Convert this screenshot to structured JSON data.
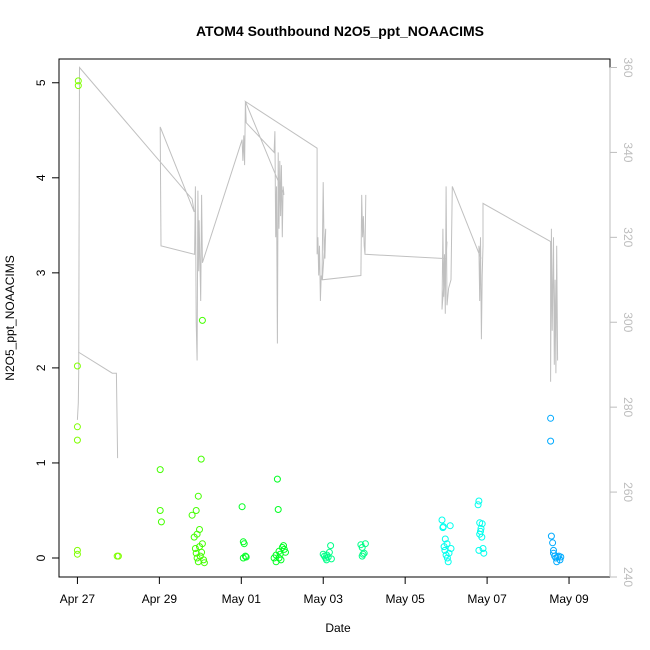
{
  "chart_data": {
    "type": "scatter",
    "title": "ATOM4 Southbound N2O5_ppt_NOAACIMS",
    "xlabel": "Date",
    "ylabel": "N2O5_ppt_NOAACIMS",
    "x_ticks": [
      "Apr 27",
      "Apr 29",
      "May 01",
      "May 03",
      "May 05",
      "May 07",
      "May 09"
    ],
    "x_tick_days": [
      0,
      2,
      4,
      6,
      8,
      10,
      12
    ],
    "xlim": [
      -0.45,
      13.0
    ],
    "ylim": [
      -0.2,
      5.25
    ],
    "y_ticks": [
      0,
      1,
      2,
      3,
      4,
      5
    ],
    "y2lim": [
      240,
      362
    ],
    "y2_ticks": [
      240,
      260,
      280,
      300,
      320,
      340,
      360
    ],
    "grid": false,
    "colors": {
      "axis": "#000000",
      "secondary_axis": "#bdbdbd",
      "line": "#c0c0c0"
    },
    "series": [
      {
        "color": "#7fff00",
        "points": [
          [
            0.02,
            5.02
          ],
          [
            0.02,
            4.97
          ],
          [
            0.0,
            2.02
          ],
          [
            0.0,
            1.38
          ],
          [
            0.0,
            1.24
          ],
          [
            0.0,
            0.08
          ],
          [
            0.0,
            0.04
          ],
          [
            0.97,
            0.02
          ],
          [
            1.0,
            0.02
          ]
        ]
      },
      {
        "color": "#44ff00",
        "points": [
          [
            2.02,
            0.93
          ],
          [
            2.02,
            0.5
          ],
          [
            2.05,
            0.38
          ],
          [
            2.8,
            0.45
          ],
          [
            2.85,
            0.22
          ],
          [
            2.88,
            0.1
          ],
          [
            2.9,
            0.05
          ],
          [
            2.92,
            0.0
          ],
          [
            2.95,
            -0.04
          ],
          [
            2.98,
            0.12
          ],
          [
            3.0,
            0.02
          ],
          [
            3.03,
            0.06
          ],
          [
            3.05,
            0.15
          ],
          [
            3.08,
            -0.02
          ],
          [
            3.1,
            -0.05
          ],
          [
            2.9,
            0.5
          ],
          [
            2.95,
            0.65
          ],
          [
            2.98,
            0.3
          ],
          [
            3.02,
            1.04
          ],
          [
            3.05,
            2.5
          ],
          [
            2.92,
            0.25
          ]
        ]
      },
      {
        "color": "#00ff22",
        "points": [
          [
            4.02,
            0.54
          ],
          [
            4.05,
            0.17
          ],
          [
            4.07,
            0.15
          ],
          [
            4.1,
            0.02
          ],
          [
            4.05,
            0.0
          ],
          [
            4.12,
            0.01
          ],
          [
            4.8,
            0.0
          ],
          [
            4.85,
            0.03
          ],
          [
            4.88,
            0.83
          ],
          [
            4.9,
            0.51
          ],
          [
            4.92,
            0.07
          ],
          [
            4.95,
            0.04
          ],
          [
            4.97,
            -0.02
          ],
          [
            5.0,
            0.11
          ],
          [
            5.03,
            0.13
          ],
          [
            5.05,
            0.09
          ],
          [
            5.08,
            0.06
          ],
          [
            4.85,
            -0.04
          ],
          [
            4.92,
            0.0
          ]
        ]
      },
      {
        "color": "#00ff88",
        "points": [
          [
            6.0,
            0.04
          ],
          [
            6.03,
            0.02
          ],
          [
            6.06,
            0.0
          ],
          [
            6.09,
            0.03
          ],
          [
            6.12,
            0.01
          ],
          [
            6.15,
            0.06
          ],
          [
            6.18,
            0.13
          ],
          [
            6.2,
            -0.01
          ],
          [
            6.08,
            -0.02
          ],
          [
            6.92,
            0.14
          ],
          [
            6.95,
            0.11
          ],
          [
            6.97,
            0.04
          ],
          [
            7.0,
            0.05
          ],
          [
            7.03,
            0.15
          ],
          [
            6.95,
            0.02
          ]
        ]
      },
      {
        "color": "#00ffee",
        "points": [
          [
            8.9,
            0.4
          ],
          [
            8.92,
            0.32
          ],
          [
            8.95,
            0.12
          ],
          [
            8.97,
            0.08
          ],
          [
            9.0,
            0.03
          ],
          [
            9.03,
            0.0
          ],
          [
            9.05,
            -0.04
          ],
          [
            9.07,
            0.05
          ],
          [
            9.1,
            0.34
          ],
          [
            9.12,
            0.1
          ],
          [
            8.93,
            0.33
          ],
          [
            8.98,
            0.2
          ],
          [
            9.02,
            0.15
          ],
          [
            9.78,
            0.56
          ],
          [
            9.8,
            0.6
          ],
          [
            9.82,
            0.37
          ],
          [
            9.85,
            0.31
          ],
          [
            9.87,
            0.22
          ],
          [
            9.9,
            0.1
          ],
          [
            9.92,
            0.05
          ],
          [
            9.8,
            0.08
          ],
          [
            9.84,
            0.28
          ],
          [
            9.88,
            0.36
          ],
          [
            9.82,
            0.25
          ]
        ]
      },
      {
        "color": "#00aaff",
        "points": [
          [
            11.55,
            1.47
          ],
          [
            11.55,
            1.23
          ],
          [
            11.57,
            0.23
          ],
          [
            11.6,
            0.16
          ],
          [
            11.62,
            0.05
          ],
          [
            11.65,
            0.02
          ],
          [
            11.68,
            0.0
          ],
          [
            11.72,
            0.01
          ],
          [
            11.75,
            0.02
          ],
          [
            11.78,
            -0.02
          ],
          [
            11.62,
            0.08
          ],
          [
            11.7,
            -0.04
          ],
          [
            11.8,
            0.01
          ]
        ]
      }
    ],
    "line_series_y2": [
      [
        0.0,
        277
      ],
      [
        0.02,
        281
      ],
      [
        0.03,
        288
      ],
      [
        0.05,
        360
      ],
      [
        2.8,
        329
      ],
      [
        2.85,
        326
      ],
      [
        2.02,
        346
      ],
      [
        2.04,
        318
      ],
      [
        2.86,
        316
      ],
      [
        2.88,
        332
      ],
      [
        2.9,
        300
      ],
      [
        2.92,
        291
      ],
      [
        2.94,
        331
      ],
      [
        2.96,
        312
      ],
      [
        2.97,
        324
      ],
      [
        2.99,
        315
      ],
      [
        3.01,
        305
      ],
      [
        3.03,
        330
      ],
      [
        3.05,
        314
      ],
      [
        4.02,
        343
      ],
      [
        4.04,
        338
      ],
      [
        4.06,
        344
      ],
      [
        4.08,
        337
      ],
      [
        4.1,
        352
      ],
      [
        4.12,
        347
      ],
      [
        4.8,
        340
      ],
      [
        4.82,
        345
      ],
      [
        4.84,
        320
      ],
      [
        4.86,
        332
      ],
      [
        4.88,
        295
      ],
      [
        4.9,
        340
      ],
      [
        4.92,
        322
      ],
      [
        4.94,
        338
      ],
      [
        4.96,
        325
      ],
      [
        4.98,
        337
      ],
      [
        5.0,
        320
      ],
      [
        5.02,
        332
      ],
      [
        5.04,
        330
      ],
      [
        4.1,
        352
      ],
      [
        5.85,
        341
      ],
      [
        5.85,
        316
      ],
      [
        5.87,
        320
      ],
      [
        5.89,
        311
      ],
      [
        5.91,
        318
      ],
      [
        5.93,
        305
      ],
      [
        5.95,
        311
      ],
      [
        5.97,
        310
      ],
      [
        6.0,
        333
      ],
      [
        6.02,
        317
      ],
      [
        6.04,
        315
      ],
      [
        6.06,
        322
      ],
      [
        5.98,
        310
      ],
      [
        6.92,
        311
      ],
      [
        6.94,
        330
      ],
      [
        6.96,
        320
      ],
      [
        6.98,
        325
      ],
      [
        7.0,
        318
      ],
      [
        7.02,
        316
      ],
      [
        7.04,
        330
      ],
      [
        7.02,
        316
      ],
      [
        9.0,
        315
      ],
      [
        9.02,
        319
      ],
      [
        8.9,
        303
      ],
      [
        8.92,
        322
      ],
      [
        8.94,
        306
      ],
      [
        8.96,
        316
      ],
      [
        8.98,
        302
      ],
      [
        9.0,
        332
      ],
      [
        9.02,
        304
      ],
      [
        9.06,
        308
      ],
      [
        9.12,
        310
      ],
      [
        9.15,
        332
      ],
      [
        9.85,
        315
      ],
      [
        9.8,
        318
      ],
      [
        9.82,
        305
      ],
      [
        9.84,
        320
      ],
      [
        9.86,
        296
      ],
      [
        9.88,
        311
      ],
      [
        9.9,
        318
      ],
      [
        9.9,
        328
      ],
      [
        11.55,
        319
      ],
      [
        11.55,
        286
      ],
      [
        11.57,
        322
      ],
      [
        11.59,
        298
      ],
      [
        11.62,
        320
      ],
      [
        11.64,
        290
      ],
      [
        11.66,
        310
      ],
      [
        11.68,
        288
      ],
      [
        11.7,
        318
      ],
      [
        11.72,
        291
      ]
    ],
    "line_series_y2_extra": [
      [
        0.02,
        293
      ],
      [
        0.85,
        288
      ],
      [
        0.95,
        288
      ],
      [
        0.98,
        268
      ]
    ]
  }
}
